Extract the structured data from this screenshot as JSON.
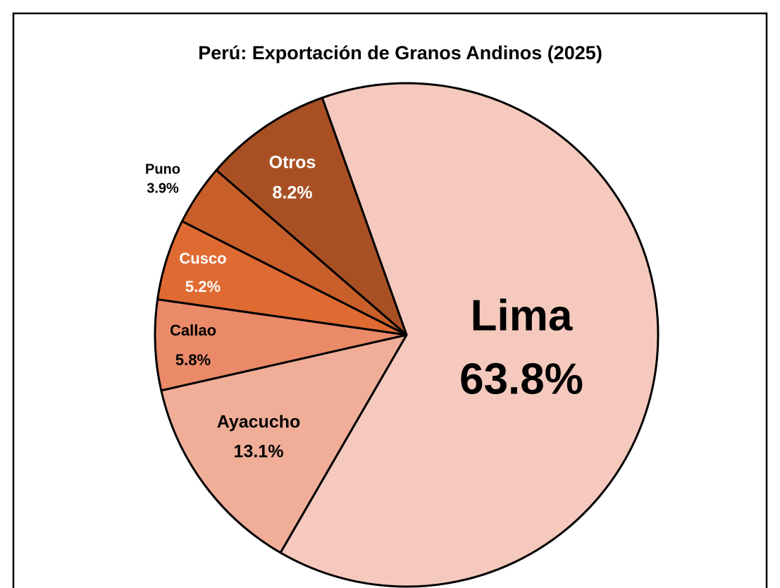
{
  "chart_data": {
    "type": "pie",
    "title": "Perú: Exportación de Granos Andinos (2025)",
    "categories": [
      "Lima",
      "Ayacucho",
      "Callao",
      "Cusco",
      "Puno",
      "Otros"
    ],
    "values": [
      63.8,
      13.1,
      5.8,
      5.2,
      3.9,
      8.2
    ],
    "value_labels": [
      "63.8%",
      "13.1%",
      "5.8%",
      "5.2%",
      "3.9%",
      "8.2%"
    ],
    "colors": [
      "#f5c9bd",
      "#f0ae99",
      "#ea8a68",
      "#e06b32",
      "#c85f2a",
      "#a85024"
    ]
  }
}
